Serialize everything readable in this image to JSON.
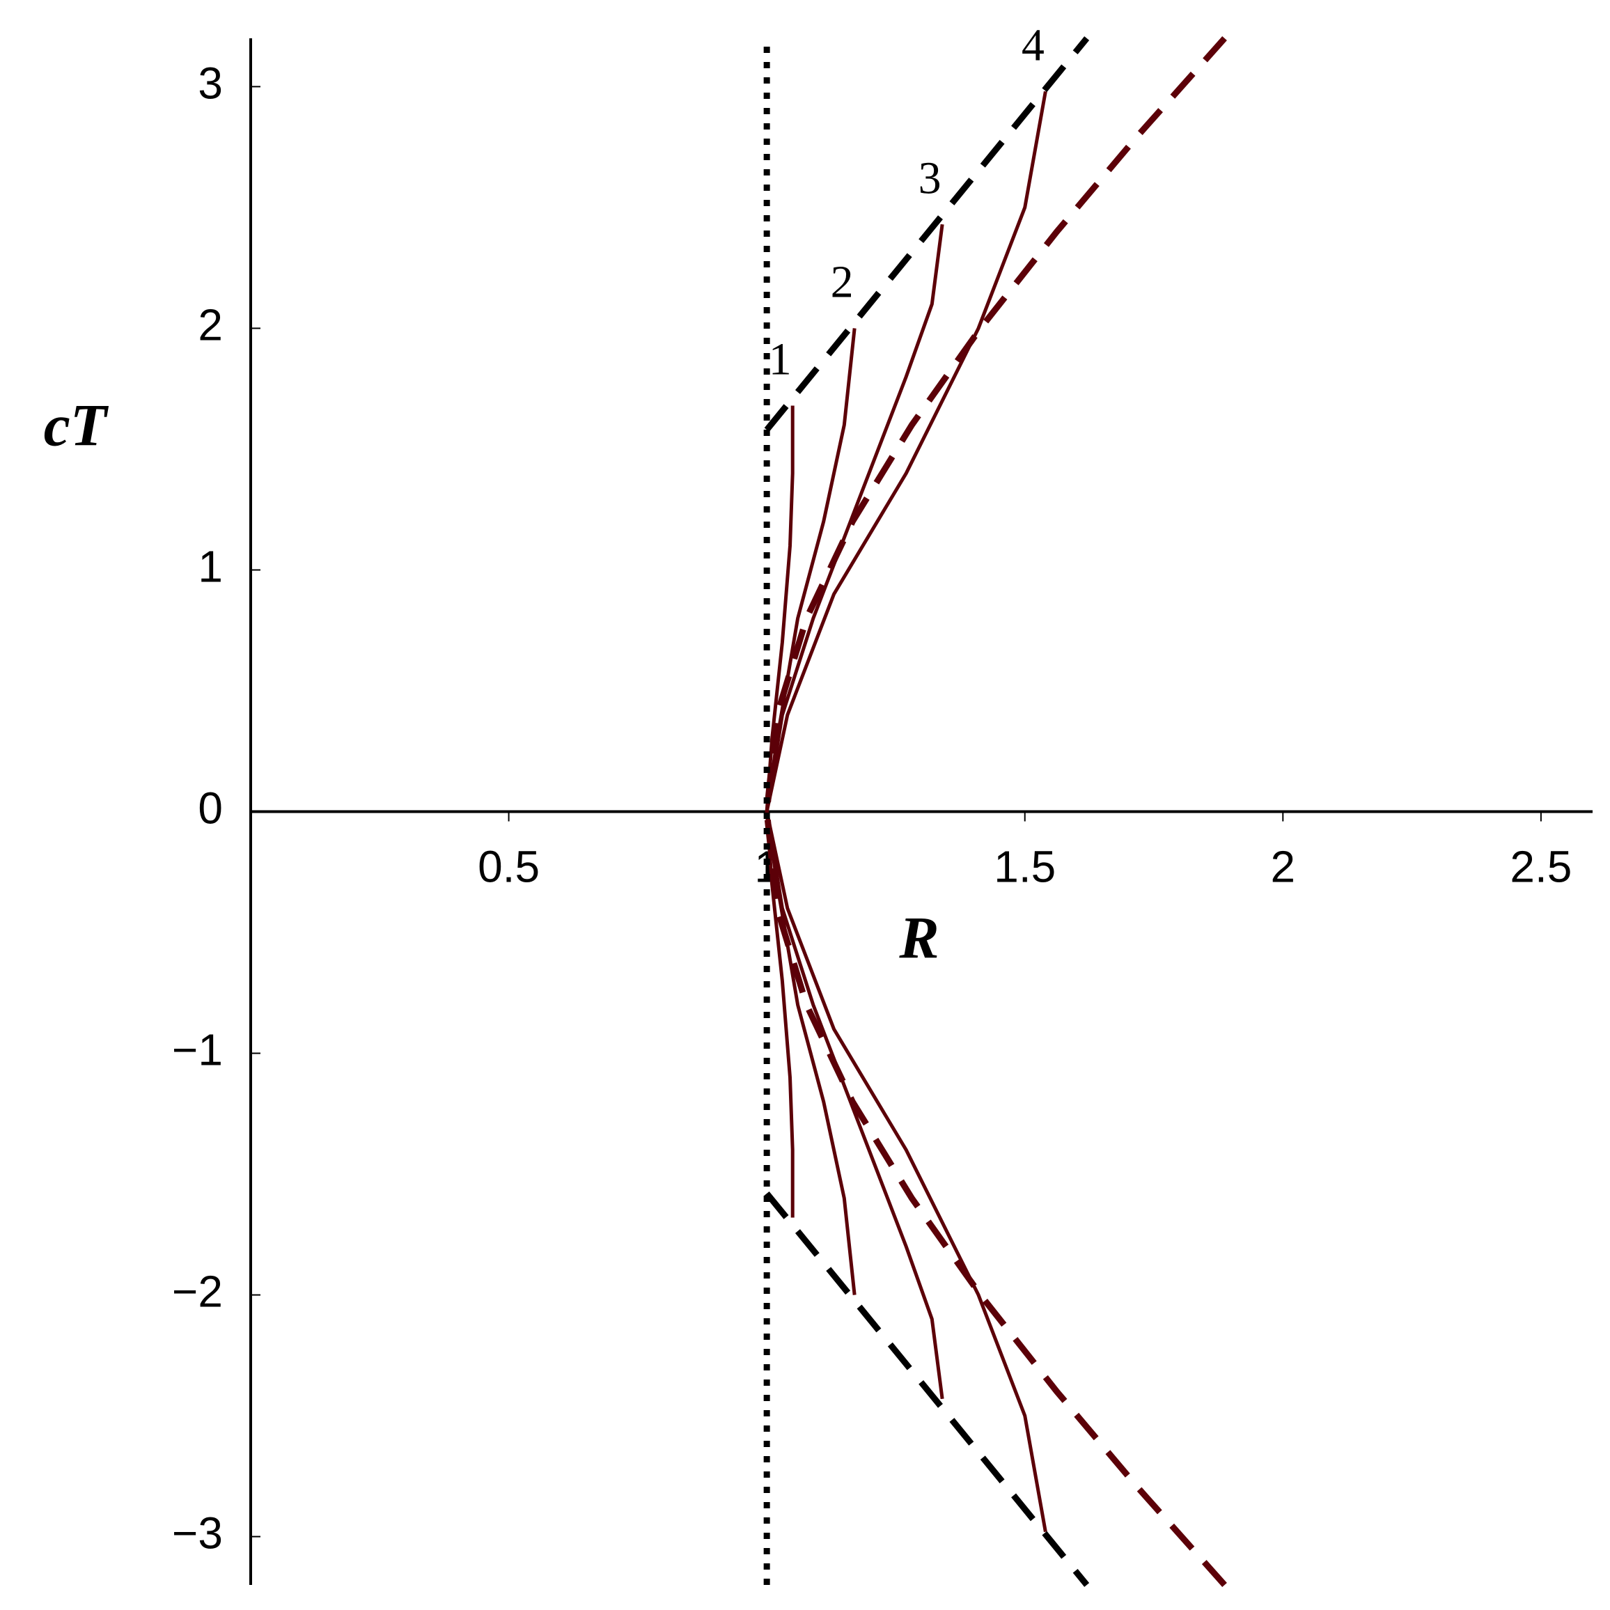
{
  "chart_data": {
    "type": "line",
    "x_label": "R",
    "y_label": "cT",
    "xlim": [
      0,
      2.6
    ],
    "ylim": [
      -3.2,
      3.2
    ],
    "xticks": [
      0.5,
      1,
      1.5,
      2,
      2.5
    ],
    "yticks": [
      {
        "value": -3,
        "label": "−3"
      },
      {
        "value": -2,
        "label": "−2"
      },
      {
        "value": -1,
        "label": "−1"
      },
      0,
      1,
      2,
      3
    ],
    "series": [
      {
        "name": "1",
        "color": "#5c0008",
        "style": "solid",
        "x": [
          1.05,
          1.05,
          1.045,
          1.03,
          1.01,
          1,
          1.01,
          1.03,
          1.045,
          1.05,
          1.05
        ],
        "y": [
          -1.68,
          -1.4,
          -1.1,
          -0.7,
          -0.3,
          0,
          0.3,
          0.7,
          1.1,
          1.4,
          1.68
        ]
      },
      {
        "name": "2",
        "color": "#5c0008",
        "style": "solid",
        "x": [
          1.17,
          1.15,
          1.11,
          1.06,
          1.02,
          1,
          1.02,
          1.06,
          1.11,
          1.15,
          1.17
        ],
        "y": [
          -2.0,
          -1.6,
          -1.2,
          -0.8,
          -0.3,
          0,
          0.3,
          0.8,
          1.2,
          1.6,
          2.0
        ]
      },
      {
        "name": "3",
        "color": "#5c0008",
        "style": "solid",
        "x": [
          1.34,
          1.32,
          1.27,
          1.18,
          1.09,
          1.03,
          1,
          1.03,
          1.09,
          1.18,
          1.27,
          1.32,
          1.34
        ],
        "y": [
          -2.43,
          -2.1,
          -1.8,
          -1.3,
          -0.8,
          -0.4,
          0,
          0.4,
          0.8,
          1.3,
          1.8,
          2.1,
          2.43
        ]
      },
      {
        "name": "4",
        "color": "#5c0008",
        "style": "solid",
        "x": [
          1.54,
          1.5,
          1.41,
          1.27,
          1.13,
          1.04,
          1,
          1.04,
          1.13,
          1.27,
          1.41,
          1.5,
          1.54
        ],
        "y": [
          -2.98,
          -2.5,
          -2.0,
          -1.4,
          -0.9,
          -0.4,
          0,
          0.4,
          0.9,
          1.4,
          2.0,
          2.5,
          2.98
        ]
      },
      {
        "color": "#5c0008",
        "style": "dashed",
        "x": [
          1.887,
          1.72,
          1.562,
          1.414,
          1.281,
          1.166,
          1.077,
          1.0198,
          1,
          1.0198,
          1.077,
          1.166,
          1.281,
          1.414,
          1.562,
          1.72,
          1.887
        ],
        "y": [
          -3.2,
          -2.8,
          -2.4,
          -2.0,
          -1.6,
          -1.2,
          -0.8,
          -0.4,
          0,
          0.4,
          0.8,
          1.2,
          1.6,
          2.0,
          2.4,
          2.8,
          3.2
        ]
      },
      {
        "color": "#000000",
        "style": "dashed",
        "x": [
          1.0,
          1.62
        ],
        "y": [
          1.58,
          3.2
        ]
      },
      {
        "color": "#000000",
        "style": "dashed",
        "x": [
          1.0,
          1.62
        ],
        "y": [
          -1.58,
          -3.2
        ]
      },
      {
        "color": "#000000",
        "style": "dotted",
        "x": [
          1,
          1
        ],
        "y": [
          -3.2,
          3.2
        ]
      }
    ]
  }
}
